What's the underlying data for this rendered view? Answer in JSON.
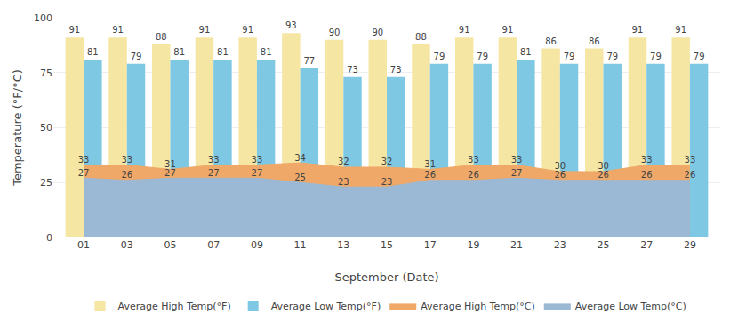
{
  "chart_data": {
    "type": "bar",
    "categories": [
      "01",
      "03",
      "05",
      "07",
      "09",
      "11",
      "13",
      "15",
      "17",
      "19",
      "21",
      "23",
      "25",
      "27",
      "29"
    ],
    "series": [
      {
        "name": "Average High Temp(°F)",
        "type": "bar",
        "color": "#F5E6A3",
        "values": [
          91,
          91,
          88,
          91,
          91,
          93,
          90,
          90,
          88,
          91,
          91,
          86,
          86,
          91,
          91
        ]
      },
      {
        "name": "Average Low Temp(°F)",
        "type": "bar",
        "color": "#7EC8E3",
        "values": [
          81,
          79,
          81,
          81,
          81,
          77,
          73,
          73,
          79,
          79,
          81,
          79,
          79,
          79,
          79
        ]
      },
      {
        "name": "Average High Temp(°C)",
        "type": "area",
        "color": "#F0A868",
        "values": [
          33,
          33,
          31,
          33,
          33,
          34,
          32,
          32,
          31,
          33,
          33,
          30,
          30,
          33,
          33
        ]
      },
      {
        "name": "Average Low Temp(°C)",
        "type": "area",
        "color": "#9BB8D4",
        "values": [
          27,
          26,
          27,
          27,
          27,
          25,
          23,
          23,
          26,
          26,
          27,
          26,
          26,
          26,
          26
        ]
      }
    ],
    "xlabel": "September (Date)",
    "ylabel": "Temperature (°F/°C)",
    "ylim": [
      0,
      100
    ],
    "yticks": [
      0,
      25,
      50,
      75,
      100
    ],
    "grid": true,
    "legend": "bottom",
    "data_labels": true
  }
}
